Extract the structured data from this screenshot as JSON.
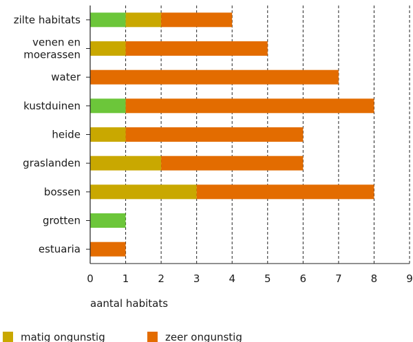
{
  "chart_data": {
    "type": "bar",
    "orientation": "horizontal",
    "stacked": true,
    "categories": [
      [
        "zilte habitats"
      ],
      [
        "venen en",
        "moerassen"
      ],
      [
        "water"
      ],
      [
        "kustduinen"
      ],
      [
        "heide"
      ],
      [
        "graslanden"
      ],
      [
        "bossen"
      ],
      [
        "grotten"
      ],
      [
        "estuaria"
      ]
    ],
    "series": [
      {
        "key": "groen",
        "color": "#6cc63a",
        "values": [
          1,
          0,
          0,
          1,
          0,
          0,
          0,
          1,
          0
        ]
      },
      {
        "key": "matig",
        "name": "matig ongunstig",
        "color": "#c9a800",
        "values": [
          1,
          1,
          0,
          0,
          1,
          2,
          3,
          0,
          0
        ]
      },
      {
        "key": "zeer",
        "name": "zeer ongunstig",
        "color": "#e36c00",
        "values": [
          2,
          4,
          7,
          7,
          5,
          4,
          5,
          0,
          1
        ]
      }
    ],
    "xlim": [
      0,
      9
    ],
    "xticks": [
      0,
      1,
      2,
      3,
      4,
      5,
      6,
      7,
      8,
      9
    ],
    "xlabel": "aantal habitats",
    "ylabel": "",
    "grid": "vertical dashed",
    "legend": {
      "placement": "bottom-left",
      "entries": [
        "matig ongunstig",
        "zeer ongunstig"
      ]
    }
  }
}
